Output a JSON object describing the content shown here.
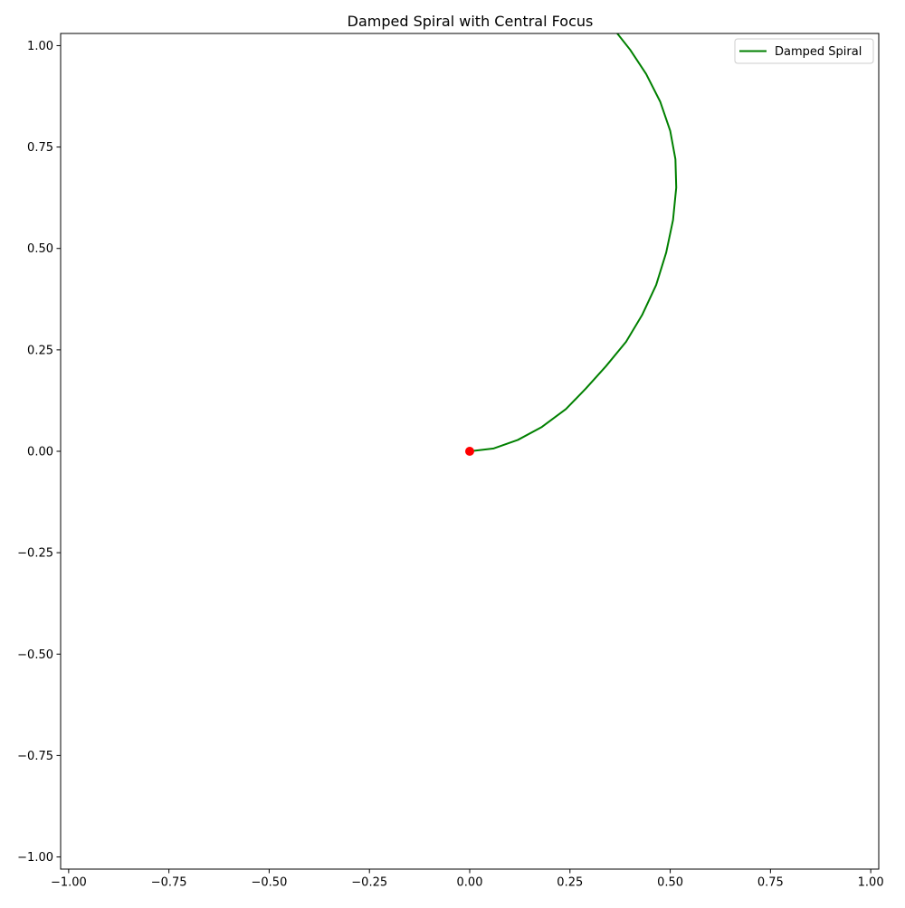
{
  "chart_data": {
    "type": "line",
    "title": "Damped Spiral with Central Focus",
    "xlabel": "",
    "ylabel": "",
    "xlim": [
      -1.02,
      1.02
    ],
    "ylim": [
      -1.03,
      1.03
    ],
    "xticks": [
      -1.0,
      -0.75,
      -0.5,
      -0.25,
      0.0,
      0.25,
      0.5,
      0.75,
      1.0
    ],
    "xtick_labels": [
      "−1.00",
      "−0.75",
      "−0.50",
      "−0.25",
      "0.00",
      "0.25",
      "0.50",
      "0.75",
      "1.00"
    ],
    "yticks": [
      -1.0,
      -0.75,
      -0.5,
      -0.25,
      0.0,
      0.25,
      0.5,
      0.75,
      1.0
    ],
    "ytick_labels": [
      "−1.00",
      "−0.75",
      "−0.50",
      "−0.25",
      "0.00",
      "0.25",
      "0.50",
      "0.75",
      "1.00"
    ],
    "grid": false,
    "legend_position": "top-right",
    "series": [
      {
        "name": "Damped Spiral",
        "color": "#008000",
        "x": [
          0.0,
          0.06,
          0.12,
          0.18,
          0.24,
          0.29,
          0.34,
          0.39,
          0.43,
          0.465,
          0.49,
          0.507,
          0.515,
          0.513,
          0.5,
          0.475,
          0.44,
          0.4,
          0.36
        ],
        "y": [
          0.0,
          0.007,
          0.028,
          0.06,
          0.104,
          0.155,
          0.21,
          0.27,
          0.336,
          0.41,
          0.49,
          0.57,
          0.65,
          0.72,
          0.79,
          0.862,
          0.93,
          0.99,
          1.04
        ]
      }
    ],
    "focus_point": {
      "x": 0.0,
      "y": 0.0,
      "color": "#ff0000"
    }
  }
}
